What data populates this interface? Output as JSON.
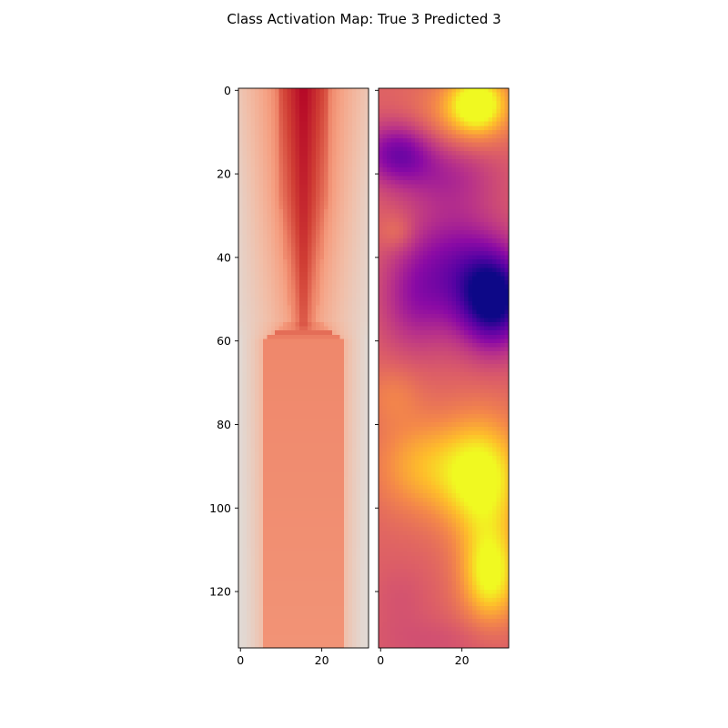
{
  "title": "Class Activation Map: True 3 Predicted 3",
  "chart_data": [
    {
      "type": "heatmap",
      "name": "input-signal",
      "colormap": "coolwarm-upper",
      "cols": 32,
      "rows": 134,
      "xlim": [
        -0.5,
        31.5
      ],
      "ylim": [
        133.5,
        -0.5
      ],
      "xticks": [
        0,
        20
      ],
      "yticks": [
        0,
        20,
        40,
        60,
        80,
        100,
        120
      ],
      "row_profile": [
        {
          "y": 0,
          "half_width": 6.2,
          "edge": 0.3
        },
        {
          "y": 25,
          "half_width": 5.8,
          "edge": 0.22
        },
        {
          "y": 55,
          "half_width": 3.2,
          "edge": 0.18
        },
        {
          "y": 60,
          "half_width": 10,
          "edge": 0.15
        },
        {
          "y": 133,
          "half_width": 10,
          "edge": 0.12
        }
      ],
      "core_values": [
        {
          "y": 0,
          "v": 1.0
        },
        {
          "y": 30,
          "v": 0.92
        },
        {
          "y": 56,
          "v": 0.82
        },
        {
          "y": 60,
          "v": 0.68
        },
        {
          "y": 133,
          "v": 0.62
        }
      ]
    },
    {
      "type": "heatmap",
      "name": "class-activation",
      "colormap": "plasma",
      "cols": 32,
      "rows": 134,
      "xlim": [
        -0.5,
        31.5
      ],
      "ylim": [
        133.5,
        -0.5
      ],
      "xticks": [
        0,
        20
      ],
      "yticks": [
        0,
        20,
        40,
        60,
        80,
        100,
        120
      ],
      "base": 0.62,
      "blobs": [
        {
          "x": 24,
          "y": 3,
          "sx": 5,
          "sy": 5,
          "a": 0.4
        },
        {
          "x": 20,
          "y": 6,
          "sx": 8,
          "sy": 6,
          "a": 0.15
        },
        {
          "x": 4,
          "y": 15,
          "sx": 6,
          "sy": 5,
          "a": -0.35
        },
        {
          "x": 16,
          "y": 20,
          "sx": 9,
          "sy": 6,
          "a": -0.18
        },
        {
          "x": 28,
          "y": 50,
          "sx": 6,
          "sy": 8,
          "a": -0.65
        },
        {
          "x": 18,
          "y": 42,
          "sx": 8,
          "sy": 10,
          "a": -0.3
        },
        {
          "x": 8,
          "y": 50,
          "sx": 6,
          "sy": 9,
          "a": -0.2
        },
        {
          "x": 4,
          "y": 34,
          "sx": 3,
          "sy": 3,
          "a": 0.1
        },
        {
          "x": 3,
          "y": 73,
          "sx": 5,
          "sy": 5,
          "a": 0.1
        },
        {
          "x": 25,
          "y": 93,
          "sx": 7,
          "sy": 10,
          "a": 0.42
        },
        {
          "x": 10,
          "y": 90,
          "sx": 8,
          "sy": 8,
          "a": 0.22
        },
        {
          "x": 27,
          "y": 116,
          "sx": 5,
          "sy": 8,
          "a": 0.4
        },
        {
          "x": 5,
          "y": 122,
          "sx": 5,
          "sy": 6,
          "a": -0.05
        },
        {
          "x": 15,
          "y": 132,
          "sx": 12,
          "sy": 4,
          "a": -0.06
        }
      ]
    }
  ]
}
